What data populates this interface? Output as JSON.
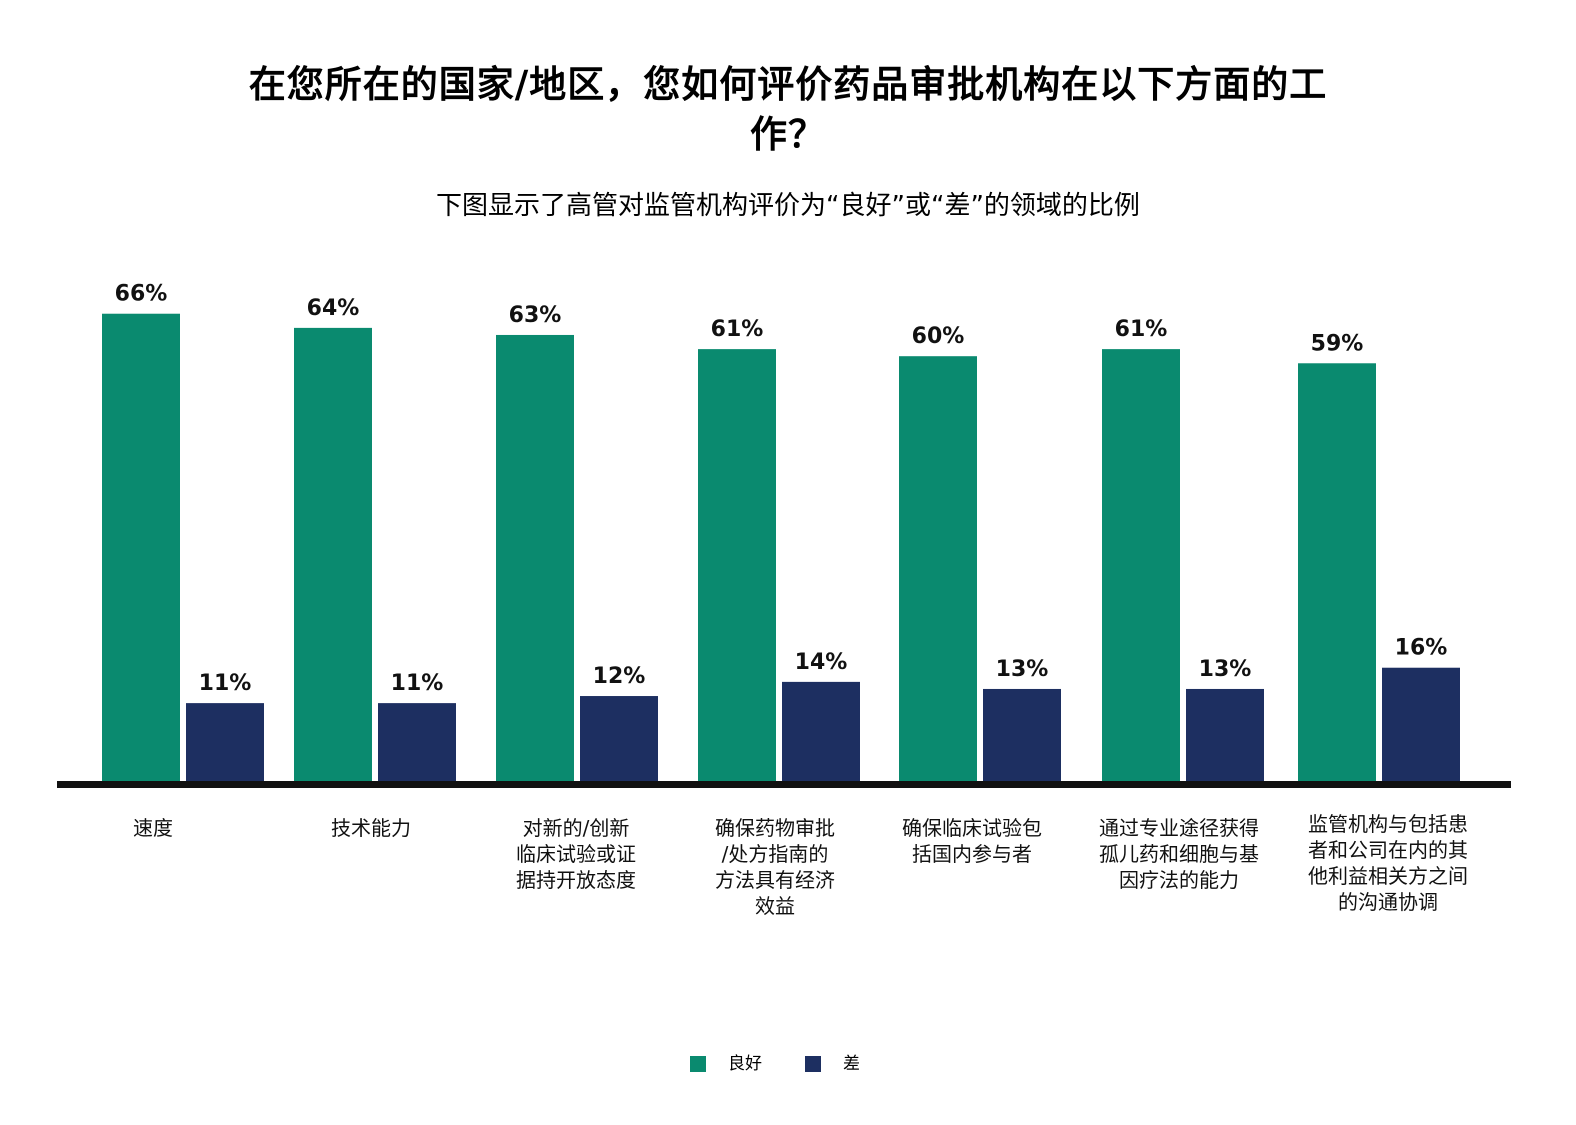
{
  "chart_data": {
    "type": "bar",
    "title": "在您所在的国家/地区，您如何评价药品审批机构在以下方面的工作？",
    "subtitle": "下图显示了高管对监管机构评价为“良好”或“差”的领域的比例",
    "categories": [
      [
        "速度"
      ],
      [
        "技术能力"
      ],
      [
        "对新的/创新",
        "临床试验或证",
        "据持开放态度"
      ],
      [
        "确保药物审批",
        "/处方指南的",
        "方法具有经济",
        "效益"
      ],
      [
        "确保临床试验包",
        "括国内参与者"
      ],
      [
        "通过专业途径获得",
        "孤儿药和细胞与基",
        "因疗法的能力"
      ],
      [
        "监管机构与包括患",
        "者和公司在内的其",
        "他利益相关方之间",
        "的沟通协调"
      ]
    ],
    "series": [
      {
        "name": "良好",
        "color": "#0a8a6f",
        "values": [
          66,
          64,
          63,
          61,
          60,
          61,
          59
        ]
      },
      {
        "name": "差",
        "color": "#1d2f61",
        "values": [
          11,
          11,
          12,
          14,
          13,
          13,
          16
        ]
      }
    ],
    "value_suffix": "%",
    "ylim": [
      0,
      70
    ],
    "grid": false,
    "legend_position": "bottom-center"
  }
}
